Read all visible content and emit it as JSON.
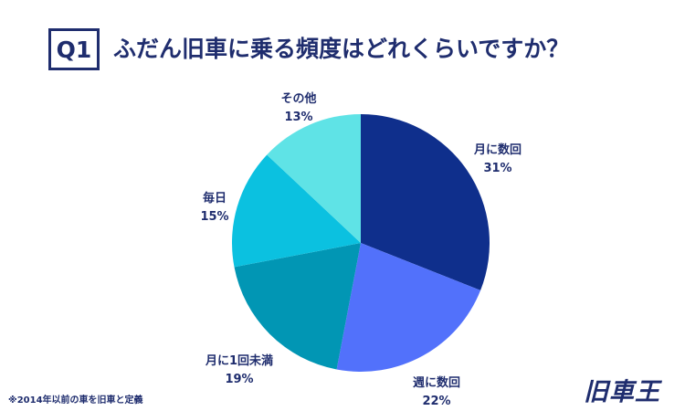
{
  "header": {
    "badge": "Q1",
    "title": "ふだん旧車に乗る頻度はどれくらいですか？"
  },
  "chart_data": {
    "type": "pie",
    "slices": [
      {
        "label": "月に数回",
        "value": 31,
        "display": "31%",
        "color": "#0f2f8c"
      },
      {
        "label": "週に数回",
        "value": 22,
        "display": "22%",
        "color": "#5271fb"
      },
      {
        "label": "月に1回未満",
        "value": 19,
        "display": "19%",
        "color": "#0196b4"
      },
      {
        "label": "毎日",
        "value": 15,
        "display": "15%",
        "color": "#0bc1e0"
      },
      {
        "label": "その他",
        "value": 13,
        "display": "13%",
        "color": "#5fe3e6"
      }
    ],
    "start": "12 o'clock",
    "direction": "clockwise"
  },
  "footnote": "※2014年以前の車を旧車と定義",
  "logo": {
    "text": "旧車王"
  }
}
